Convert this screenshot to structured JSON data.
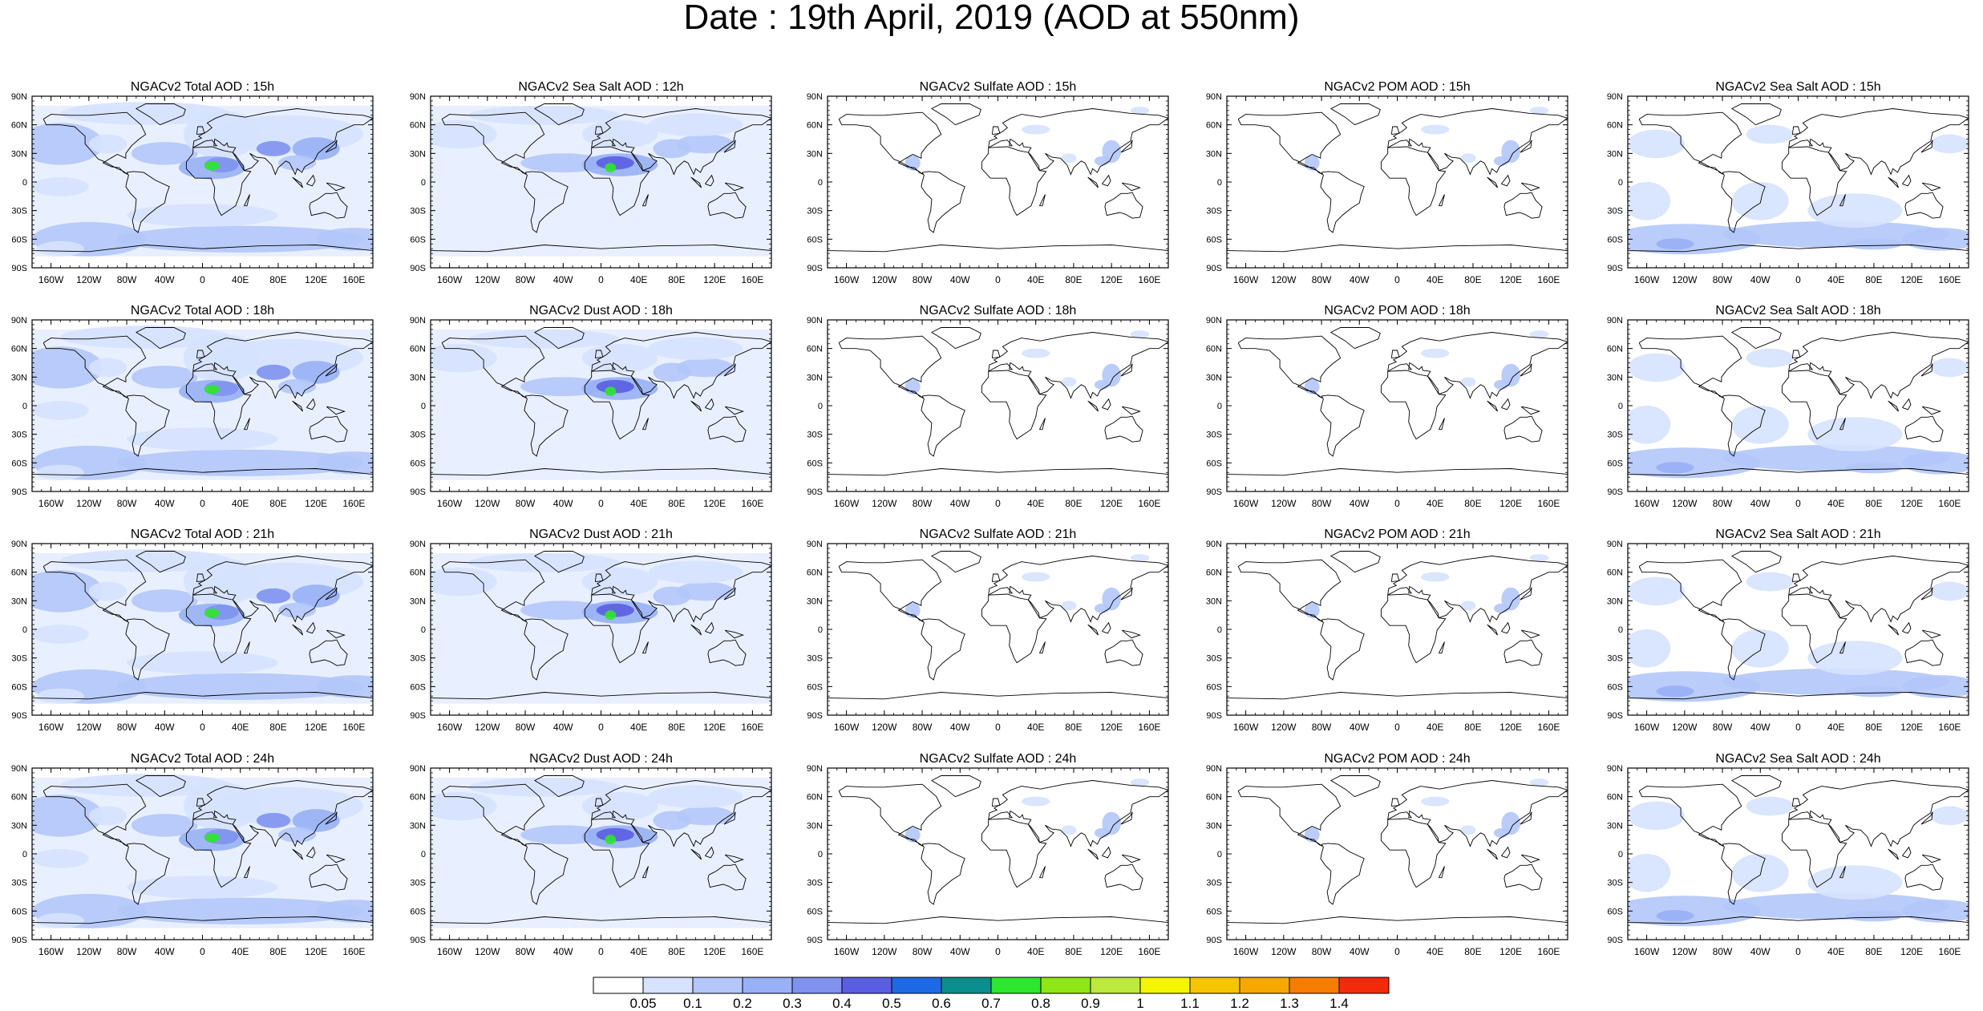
{
  "figure": {
    "title": "Date : 19th April, 2019 (AOD at 550nm)",
    "lat_ticks": [
      "90N",
      "60N",
      "30N",
      "0",
      "30S",
      "60S",
      "90S"
    ],
    "lon_ticks": [
      "160W",
      "120W",
      "80W",
      "40W",
      "0",
      "40E",
      "80E",
      "120E",
      "160E"
    ]
  },
  "panels": [
    {
      "title": "NGACv2 Total AOD : 15h",
      "variable": "Total",
      "hour": 15,
      "intensity": "high"
    },
    {
      "title": "NGACv2 Sea Salt  AOD : 12h",
      "variable": "Sea Salt",
      "hour": 12,
      "intensity": "dust"
    },
    {
      "title": "NGACv2 Sulfate AOD : 15h",
      "variable": "Sulfate",
      "hour": 15,
      "intensity": "low"
    },
    {
      "title": "NGACv2 POM AOD : 15h",
      "variable": "POM",
      "hour": 15,
      "intensity": "low"
    },
    {
      "title": "NGACv2 Sea Salt  AOD : 15h",
      "variable": "Sea Salt",
      "hour": 15,
      "intensity": "ocean"
    },
    {
      "title": "NGACv2 Total AOD : 18h",
      "variable": "Total",
      "hour": 18,
      "intensity": "high"
    },
    {
      "title": "NGACv2 Dust AOD : 18h",
      "variable": "Dust",
      "hour": 18,
      "intensity": "dust"
    },
    {
      "title": "NGACv2 Sulfate AOD : 18h",
      "variable": "Sulfate",
      "hour": 18,
      "intensity": "low"
    },
    {
      "title": "NGACv2 POM AOD : 18h",
      "variable": "POM",
      "hour": 18,
      "intensity": "low"
    },
    {
      "title": "NGACv2 Sea Salt  AOD : 18h",
      "variable": "Sea Salt",
      "hour": 18,
      "intensity": "ocean"
    },
    {
      "title": "NGACv2 Total AOD : 21h",
      "variable": "Total",
      "hour": 21,
      "intensity": "high"
    },
    {
      "title": "NGACv2 Dust AOD : 21h",
      "variable": "Dust",
      "hour": 21,
      "intensity": "dust"
    },
    {
      "title": "NGACv2 Sulfate AOD : 21h",
      "variable": "Sulfate",
      "hour": 21,
      "intensity": "low"
    },
    {
      "title": "NGACv2 POM AOD : 21h",
      "variable": "POM",
      "hour": 21,
      "intensity": "low"
    },
    {
      "title": "NGACv2 Sea Salt  AOD : 21h",
      "variable": "Sea Salt",
      "hour": 21,
      "intensity": "ocean"
    },
    {
      "title": "NGACv2 Total AOD : 24h",
      "variable": "Total",
      "hour": 24,
      "intensity": "high"
    },
    {
      "title": "NGACv2 Dust AOD : 24h",
      "variable": "Dust",
      "hour": 24,
      "intensity": "dust"
    },
    {
      "title": "NGACv2 Sulfate AOD : 24h",
      "variable": "Sulfate",
      "hour": 24,
      "intensity": "low"
    },
    {
      "title": "NGACv2 POM AOD : 24h",
      "variable": "POM",
      "hour": 24,
      "intensity": "low"
    },
    {
      "title": "NGACv2 Sea Salt  AOD : 24h",
      "variable": "Sea Salt",
      "hour": 24,
      "intensity": "ocean"
    }
  ],
  "colorbar": {
    "labels": [
      "0.05",
      "0.1",
      "0.2",
      "0.3",
      "0.4",
      "0.5",
      "0.6",
      "0.7",
      "0.8",
      "0.9",
      "1",
      "1.1",
      "1.2",
      "1.3",
      "1.4"
    ],
    "colors": [
      "#ffffff",
      "#d6e2ff",
      "#b3c7fa",
      "#98b0f5",
      "#7f92ee",
      "#5a5ee2",
      "#1e6ae6",
      "#0a8e8e",
      "#2ee62e",
      "#8ee614",
      "#bde83c",
      "#f5f500",
      "#f7c400",
      "#f7a800",
      "#f77d00",
      "#f52a0a"
    ]
  }
}
